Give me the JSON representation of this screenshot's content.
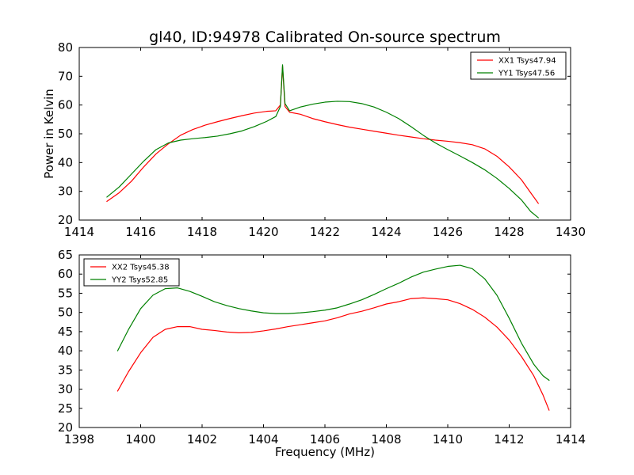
{
  "figure": {
    "title": "gl40, ID:94978 Calibrated On-source spectrum"
  },
  "chart_data": [
    {
      "type": "line",
      "panel": "top",
      "title": "gl40, ID:94978 Calibrated On-source spectrum",
      "xlabel": "",
      "ylabel": "Power in Kelvin",
      "xlim": [
        1414,
        1430
      ],
      "ylim": [
        20,
        80
      ],
      "xticks": [
        1414,
        1416,
        1418,
        1420,
        1422,
        1424,
        1426,
        1428,
        1430
      ],
      "yticks": [
        20,
        30,
        40,
        50,
        60,
        70,
        80
      ],
      "grid": false,
      "legend": "top-right",
      "series": [
        {
          "name": "XX1 Tsys47.94",
          "color": "#ff0000",
          "points": [
            [
              1414.9,
              26.5
            ],
            [
              1415.3,
              29.5
            ],
            [
              1415.7,
              33.5
            ],
            [
              1416.1,
              38.5
            ],
            [
              1416.5,
              43.0
            ],
            [
              1416.9,
              46.5
            ],
            [
              1417.3,
              49.5
            ],
            [
              1417.7,
              51.5
            ],
            [
              1418.1,
              53.0
            ],
            [
              1418.5,
              54.2
            ],
            [
              1418.9,
              55.3
            ],
            [
              1419.3,
              56.3
            ],
            [
              1419.7,
              57.2
            ],
            [
              1420.1,
              57.8
            ],
            [
              1420.4,
              58.0
            ],
            [
              1420.55,
              60.0
            ],
            [
              1420.62,
              73.5
            ],
            [
              1420.7,
              59.5
            ],
            [
              1420.85,
              57.5
            ],
            [
              1421.2,
              56.8
            ],
            [
              1421.6,
              55.3
            ],
            [
              1422.0,
              54.2
            ],
            [
              1422.4,
              53.2
            ],
            [
              1422.8,
              52.3
            ],
            [
              1423.2,
              51.6
            ],
            [
              1423.6,
              50.9
            ],
            [
              1424.0,
              50.2
            ],
            [
              1424.4,
              49.5
            ],
            [
              1424.8,
              48.9
            ],
            [
              1425.2,
              48.3
            ],
            [
              1425.6,
              47.8
            ],
            [
              1426.0,
              47.4
            ],
            [
              1426.4,
              46.9
            ],
            [
              1426.8,
              46.2
            ],
            [
              1427.2,
              44.8
            ],
            [
              1427.6,
              42.2
            ],
            [
              1428.0,
              38.5
            ],
            [
              1428.4,
              34.0
            ],
            [
              1428.7,
              29.5
            ],
            [
              1428.95,
              25.8
            ]
          ]
        },
        {
          "name": "YY1 Tsys47.56",
          "color": "#008000",
          "points": [
            [
              1414.9,
              28.0
            ],
            [
              1415.3,
              31.5
            ],
            [
              1415.7,
              36.0
            ],
            [
              1416.1,
              40.5
            ],
            [
              1416.5,
              44.5
            ],
            [
              1416.9,
              46.8
            ],
            [
              1417.3,
              47.8
            ],
            [
              1417.7,
              48.3
            ],
            [
              1418.1,
              48.7
            ],
            [
              1418.5,
              49.2
            ],
            [
              1418.9,
              50.0
            ],
            [
              1419.3,
              51.0
            ],
            [
              1419.7,
              52.5
            ],
            [
              1420.1,
              54.3
            ],
            [
              1420.4,
              56.0
            ],
            [
              1420.55,
              59.5
            ],
            [
              1420.62,
              74.0
            ],
            [
              1420.7,
              60.5
            ],
            [
              1420.85,
              58.0
            ],
            [
              1421.2,
              59.3
            ],
            [
              1421.6,
              60.3
            ],
            [
              1422.0,
              61.0
            ],
            [
              1422.4,
              61.3
            ],
            [
              1422.8,
              61.2
            ],
            [
              1423.2,
              60.5
            ],
            [
              1423.6,
              59.3
            ],
            [
              1424.0,
              57.5
            ],
            [
              1424.4,
              55.3
            ],
            [
              1424.8,
              52.5
            ],
            [
              1425.2,
              49.5
            ],
            [
              1425.6,
              46.8
            ],
            [
              1426.0,
              44.5
            ],
            [
              1426.4,
              42.3
            ],
            [
              1426.8,
              40.0
            ],
            [
              1427.2,
              37.5
            ],
            [
              1427.6,
              34.5
            ],
            [
              1428.0,
              31.0
            ],
            [
              1428.4,
              27.0
            ],
            [
              1428.7,
              23.0
            ],
            [
              1428.95,
              20.8
            ]
          ]
        }
      ]
    },
    {
      "type": "line",
      "panel": "bottom",
      "title": "",
      "xlabel": "Frequency (MHz)",
      "ylabel": "",
      "xlim": [
        1398,
        1414
      ],
      "ylim": [
        20,
        65
      ],
      "xticks": [
        1398,
        1400,
        1402,
        1404,
        1406,
        1408,
        1410,
        1412,
        1414
      ],
      "yticks": [
        20,
        25,
        30,
        35,
        40,
        45,
        50,
        55,
        60,
        65
      ],
      "grid": false,
      "legend": "top-left",
      "series": [
        {
          "name": "XX2 Tsys45.38",
          "color": "#ff0000",
          "points": [
            [
              1399.25,
              29.5
            ],
            [
              1399.6,
              34.5
            ],
            [
              1400.0,
              39.5
            ],
            [
              1400.4,
              43.5
            ],
            [
              1400.8,
              45.6
            ],
            [
              1401.2,
              46.3
            ],
            [
              1401.6,
              46.3
            ],
            [
              1402.0,
              45.6
            ],
            [
              1402.4,
              45.3
            ],
            [
              1402.8,
              44.9
            ],
            [
              1403.2,
              44.7
            ],
            [
              1403.6,
              44.8
            ],
            [
              1404.0,
              45.2
            ],
            [
              1404.4,
              45.7
            ],
            [
              1404.8,
              46.3
            ],
            [
              1405.2,
              46.8
            ],
            [
              1405.6,
              47.3
            ],
            [
              1406.0,
              47.8
            ],
            [
              1406.4,
              48.6
            ],
            [
              1406.8,
              49.6
            ],
            [
              1407.2,
              50.3
            ],
            [
              1407.6,
              51.2
            ],
            [
              1408.0,
              52.2
            ],
            [
              1408.4,
              52.8
            ],
            [
              1408.8,
              53.6
            ],
            [
              1409.2,
              53.8
            ],
            [
              1409.6,
              53.6
            ],
            [
              1410.0,
              53.3
            ],
            [
              1410.4,
              52.3
            ],
            [
              1410.8,
              50.8
            ],
            [
              1411.2,
              48.8
            ],
            [
              1411.6,
              46.2
            ],
            [
              1412.0,
              42.8
            ],
            [
              1412.4,
              38.5
            ],
            [
              1412.8,
              33.5
            ],
            [
              1413.1,
              28.5
            ],
            [
              1413.3,
              24.5
            ]
          ]
        },
        {
          "name": "YY2 Tsys52.85",
          "color": "#008000",
          "points": [
            [
              1399.25,
              40.0
            ],
            [
              1399.6,
              45.5
            ],
            [
              1400.0,
              51.0
            ],
            [
              1400.4,
              54.5
            ],
            [
              1400.8,
              56.2
            ],
            [
              1401.2,
              56.4
            ],
            [
              1401.6,
              55.5
            ],
            [
              1402.0,
              54.2
            ],
            [
              1402.4,
              52.8
            ],
            [
              1402.8,
              51.8
            ],
            [
              1403.2,
              51.0
            ],
            [
              1403.6,
              50.4
            ],
            [
              1404.0,
              49.9
            ],
            [
              1404.4,
              49.7
            ],
            [
              1404.8,
              49.7
            ],
            [
              1405.2,
              49.9
            ],
            [
              1405.6,
              50.2
            ],
            [
              1406.0,
              50.6
            ],
            [
              1406.4,
              51.2
            ],
            [
              1406.8,
              52.2
            ],
            [
              1407.2,
              53.3
            ],
            [
              1407.6,
              54.7
            ],
            [
              1408.0,
              56.2
            ],
            [
              1408.4,
              57.6
            ],
            [
              1408.8,
              59.2
            ],
            [
              1409.2,
              60.5
            ],
            [
              1409.6,
              61.3
            ],
            [
              1410.0,
              62.0
            ],
            [
              1410.4,
              62.3
            ],
            [
              1410.8,
              61.4
            ],
            [
              1411.2,
              58.8
            ],
            [
              1411.6,
              54.5
            ],
            [
              1412.0,
              48.5
            ],
            [
              1412.4,
              42.0
            ],
            [
              1412.8,
              36.5
            ],
            [
              1413.1,
              33.5
            ],
            [
              1413.3,
              32.3
            ]
          ]
        }
      ]
    }
  ]
}
